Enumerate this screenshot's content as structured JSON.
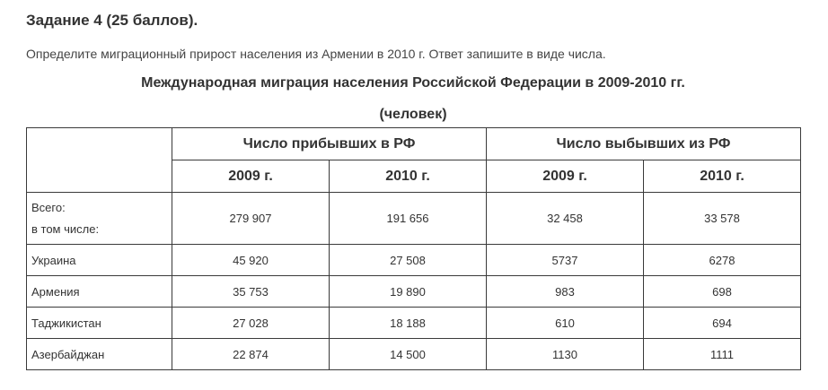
{
  "task": {
    "title": "Задание 4 (25 баллов).",
    "text": "Определите миграционный прирост населения из Армении в 2010 г. Ответ запишите в виде числа."
  },
  "table": {
    "title": "Международная миграция населения Российской Федерации в 2009-2010 гг.",
    "units": "(человек)",
    "groups": [
      "Число прибывших в РФ",
      "Число выбывших из РФ"
    ],
    "years": [
      "2009 г.",
      "2010 г.",
      "2009 г.",
      "2010 г."
    ],
    "total": {
      "label_line1": "Всего:",
      "label_line2": "в том числе:",
      "values": [
        "279 907",
        "191 656",
        "32 458",
        "33 578"
      ]
    },
    "rows": [
      {
        "name": "Украина",
        "values": [
          "45 920",
          "27 508",
          "5737",
          "6278"
        ]
      },
      {
        "name": "Армения",
        "values": [
          "35 753",
          "19 890",
          "983",
          "698"
        ]
      },
      {
        "name": "Таджикистан",
        "values": [
          "27 028",
          "18 188",
          "610",
          "694"
        ]
      },
      {
        "name": "Азербайджан",
        "values": [
          "22 874",
          "14 500",
          "1130",
          "1111"
        ]
      }
    ]
  }
}
